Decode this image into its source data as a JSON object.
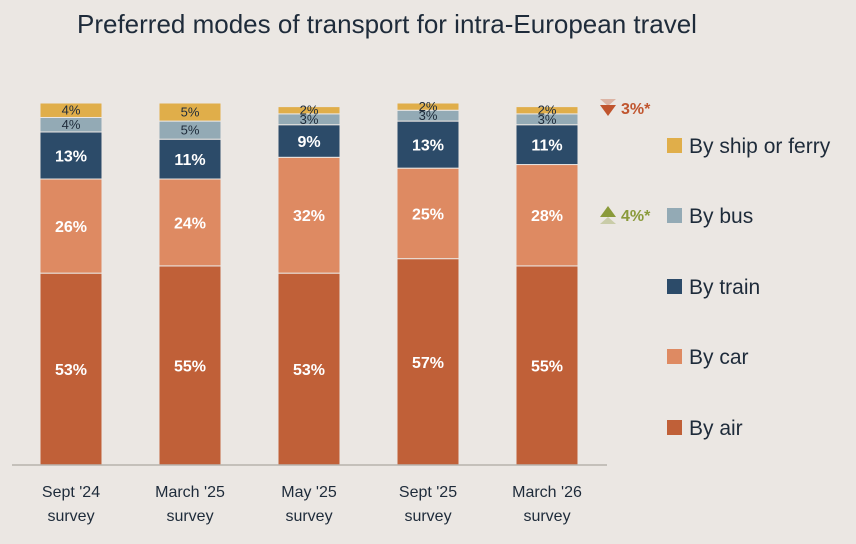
{
  "chart_data": {
    "type": "bar",
    "stacked": true,
    "title": "Preferred modes of transport for intra-European travel",
    "categories": [
      [
        "Sept '24",
        "survey"
      ],
      [
        "March '25",
        "survey"
      ],
      [
        "May '25",
        "survey"
      ],
      [
        "Sept '25",
        "survey"
      ],
      [
        "March '26",
        "survey"
      ]
    ],
    "ylim": [
      0,
      100
    ],
    "grid": false,
    "legend_position": "right",
    "series": [
      {
        "name": "By air",
        "color": "#c06038",
        "values": [
          53,
          55,
          53,
          57,
          55
        ]
      },
      {
        "name": "By car",
        "color": "#de8a62",
        "values": [
          26,
          24,
          32,
          25,
          28
        ]
      },
      {
        "name": "By train",
        "color": "#2c4b69",
        "values": [
          13,
          11,
          9,
          13,
          11
        ]
      },
      {
        "name": "By bus",
        "color": "#93aab5",
        "values": [
          4,
          5,
          3,
          3,
          3
        ]
      },
      {
        "name": "By ship or ferry",
        "color": "#e0ae4a",
        "values": [
          4,
          5,
          2,
          2,
          2
        ]
      }
    ],
    "legend_order": [
      "By ship or ferry",
      "By bus",
      "By train",
      "By car",
      "By air"
    ],
    "annotations": [
      {
        "text": "3%*",
        "direction": "down",
        "color": "#c0552e",
        "series": "By ship or ferry"
      },
      {
        "text": "4%*",
        "direction": "up",
        "color": "#8a9a3a",
        "series": "By car"
      }
    ]
  }
}
